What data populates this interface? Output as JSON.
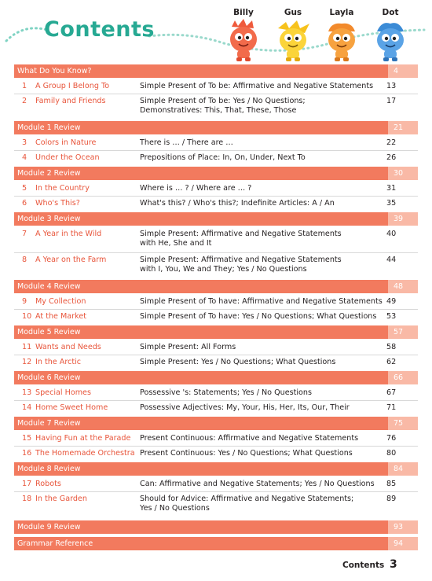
{
  "header": {
    "title": "Contents",
    "characters": [
      "Billy",
      "Gus",
      "Layla",
      "Dot"
    ]
  },
  "colors": {
    "accent": "#f27a5e",
    "accent_light": "#f9b9a6",
    "title": "#27a993"
  },
  "reviews": {
    "r0": {
      "label": "What Do You Know?",
      "page": "4"
    },
    "r1": {
      "label": "Module 1 Review",
      "page": "21"
    },
    "r2": {
      "label": "Module 2 Review",
      "page": "30"
    },
    "r3": {
      "label": "Module 3 Review",
      "page": "39"
    },
    "r4": {
      "label": "Module 4 Review",
      "page": "48"
    },
    "r5": {
      "label": "Module 5 Review",
      "page": "57"
    },
    "r6": {
      "label": "Module 6 Review",
      "page": "66"
    },
    "r7": {
      "label": "Module 7 Review",
      "page": "75"
    },
    "r8": {
      "label": "Module 8 Review",
      "page": "84"
    },
    "r9": {
      "label": "Module 9 Review",
      "page": "93"
    },
    "r10": {
      "label": "Grammar Reference",
      "page": "94"
    }
  },
  "units": [
    {
      "num": "1",
      "title": "A Group I Belong To",
      "desc1": "Simple Present of To be: Affirmative and Negative Statements",
      "desc2": "",
      "page": "13"
    },
    {
      "num": "2",
      "title": "Family and Friends",
      "desc1": "Simple Present of To be: Yes / No Questions;",
      "desc2": "Demonstratives: This, That, These, Those",
      "page": "17"
    },
    {
      "num": "3",
      "title": "Colors in Nature",
      "desc1": "There is … / There are …",
      "desc2": "",
      "page": "22"
    },
    {
      "num": "4",
      "title": "Under the Ocean",
      "desc1": "Prepositions of Place: In, On, Under, Next To",
      "desc2": "",
      "page": "26"
    },
    {
      "num": "5",
      "title": "In the Country",
      "desc1": "Where is … ? / Where are … ?",
      "desc2": "",
      "page": "31"
    },
    {
      "num": "6",
      "title": "Who's This?",
      "desc1": "What's this? / Who's this?; Indefinite Articles: A / An",
      "desc2": "",
      "page": "35"
    },
    {
      "num": "7",
      "title": "A Year in the Wild",
      "desc1": "Simple Present: Affirmative and Negative Statements",
      "desc2": "with He, She and It",
      "page": "40"
    },
    {
      "num": "8",
      "title": "A Year on the Farm",
      "desc1": "Simple Present: Affirmative and Negative Statements",
      "desc2": "with I, You, We and They; Yes / No Questions",
      "page": "44"
    },
    {
      "num": "9",
      "title": "My Collection",
      "desc1": "Simple Present of To have: Affirmative and Negative Statements",
      "desc2": "",
      "page": "49"
    },
    {
      "num": "10",
      "title": "At the Market",
      "desc1": "Simple Present of To have: Yes / No Questions; What Questions",
      "desc2": "",
      "page": "53"
    },
    {
      "num": "11",
      "title": "Wants and Needs",
      "desc1": "Simple Present: All Forms",
      "desc2": "",
      "page": "58"
    },
    {
      "num": "12",
      "title": "In the Arctic",
      "desc1": "Simple Present: Yes / No Questions; What Questions",
      "desc2": "",
      "page": "62"
    },
    {
      "num": "13",
      "title": "Special Homes",
      "desc1": "Possessive 's: Statements; Yes / No Questions",
      "desc2": "",
      "page": "67"
    },
    {
      "num": "14",
      "title": "Home Sweet Home",
      "desc1": "Possessive Adjectives: My, Your, His, Her, Its, Our, Their",
      "desc2": "",
      "page": "71"
    },
    {
      "num": "15",
      "title": "Having Fun at the Parade",
      "desc1": "Present Continuous: Affirmative and Negative Statements",
      "desc2": "",
      "page": "76"
    },
    {
      "num": "16",
      "title": "The Homemade Orchestra",
      "desc1": "Present Continuous: Yes / No Questions; What Questions",
      "desc2": "",
      "page": "80"
    },
    {
      "num": "17",
      "title": "Robots",
      "desc1": "Can: Affirmative and Negative Statements; Yes / No Questions",
      "desc2": "",
      "page": "85"
    },
    {
      "num": "18",
      "title": "In the Garden",
      "desc1": "Should for Advice: Affirmative and Negative Statements;",
      "desc2": "Yes / No Questions",
      "page": "89"
    }
  ],
  "footer": {
    "label": "Contents",
    "page_number": "3"
  }
}
